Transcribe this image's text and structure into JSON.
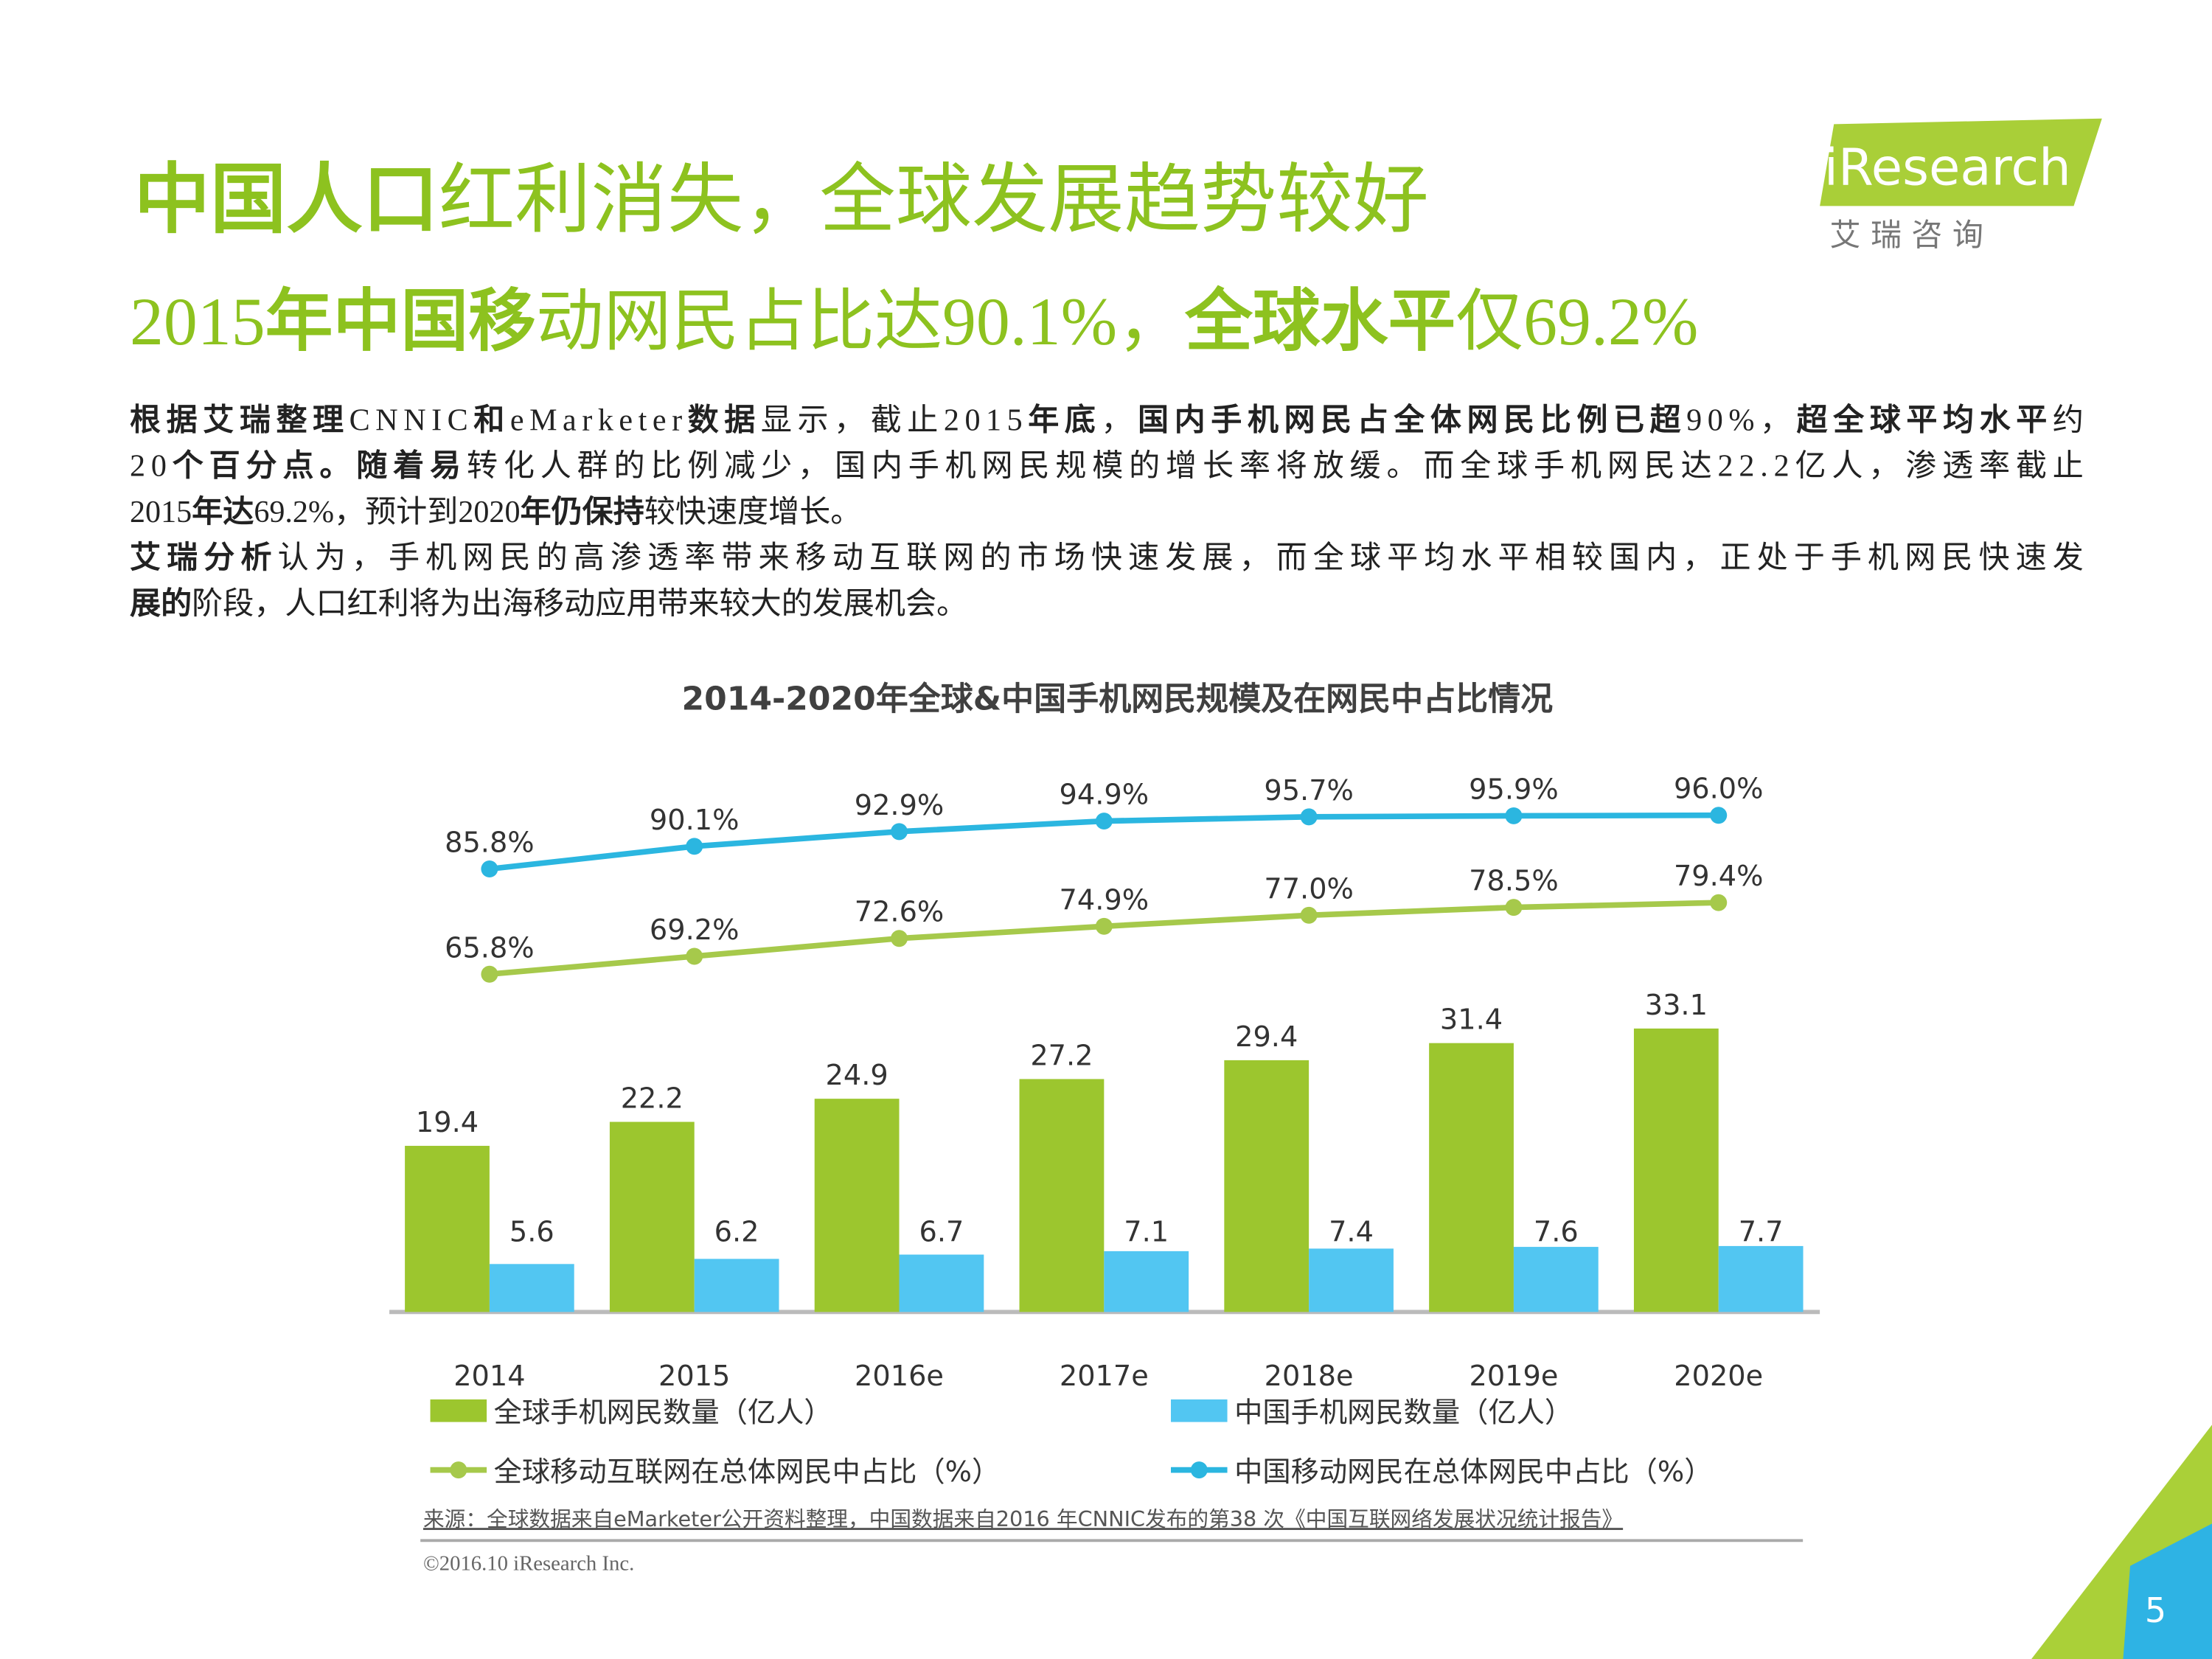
{
  "logo": {
    "brand": "iResearch",
    "sub": "艾 瑞 咨 询"
  },
  "header": {
    "title": [
      {
        "text": "中国人口",
        "bold": true
      },
      {
        "text": "红利消失，全球发展趋势较好",
        "bold": false
      }
    ],
    "subtitle": [
      {
        "text": "2015",
        "bold": false
      },
      {
        "text": "年中国移",
        "bold": true
      },
      {
        "text": "动网民占比达90.1%，",
        "bold": false
      },
      {
        "text": "全球水平",
        "bold": true
      },
      {
        "text": "仅69.2%",
        "bold": false
      }
    ]
  },
  "body": [
    [
      {
        "text": "根据艾瑞整理",
        "bold": true
      },
      {
        "text": "CNNIC",
        "bold": false
      },
      {
        "text": "和",
        "bold": true
      },
      {
        "text": "eMarketer",
        "bold": false
      },
      {
        "text": "数据",
        "bold": true
      },
      {
        "text": "显示，截止2015",
        "bold": false
      },
      {
        "text": "年底",
        "bold": true
      },
      {
        "text": "，",
        "bold": false
      },
      {
        "text": "国内手机网民占全体网民比例已超",
        "bold": true
      },
      {
        "text": "90%，",
        "bold": false
      },
      {
        "text": "超全球平均水平",
        "bold": true
      },
      {
        "text": "约",
        "bold": false
      }
    ],
    [
      {
        "text": "20",
        "bold": false
      },
      {
        "text": "个百分点。随着易",
        "bold": true
      },
      {
        "text": "转化人群的比例减少，国内手机网民规模的增长率将放缓。而全球手机网民达22.2亿人，渗透率截止",
        "bold": false
      }
    ],
    [
      {
        "text": "2015",
        "bold": false
      },
      {
        "text": "年达",
        "bold": true
      },
      {
        "text": "69.2%，预计到2020",
        "bold": false
      },
      {
        "text": "年仍保持",
        "bold": true
      },
      {
        "text": "较快速度增长。",
        "bold": false
      }
    ],
    [
      {
        "text": "艾瑞分析",
        "bold": true
      },
      {
        "text": "认为，手机网民的高渗透率带来移动互联网的市场快速发展，而全球平均水平相较国内，正处于手机网民快速发",
        "bold": false
      }
    ],
    [
      {
        "text": "展的",
        "bold": true
      },
      {
        "text": "阶段，人口红利将为出海移动应用带来较大的发展机会。",
        "bold": false
      }
    ]
  ],
  "chart_data": {
    "type": "bar-line",
    "title": "2014-2020年全球&中国手机网民规模及在网民中占比情况",
    "categories": [
      "2014",
      "2015",
      "2016e",
      "2017e",
      "2018e",
      "2019e",
      "2020e"
    ],
    "series": [
      {
        "name": "全球手机网民数量（亿人）",
        "type": "bar",
        "color": "#9cc62e",
        "values": [
          19.4,
          22.2,
          24.9,
          27.2,
          29.4,
          31.4,
          33.1
        ]
      },
      {
        "name": "中国手机网民数量（亿人）",
        "type": "bar",
        "color": "#52c6f2",
        "values": [
          5.6,
          6.2,
          6.7,
          7.1,
          7.4,
          7.6,
          7.7
        ]
      },
      {
        "name": "全球移动互联网在总体网民中占比（%）",
        "type": "line",
        "color": "#a6c94b",
        "values": [
          65.8,
          69.2,
          72.6,
          74.9,
          77.0,
          78.5,
          79.4
        ],
        "value_labels": [
          "65.8%",
          "69.2%",
          "72.6%",
          "74.9%",
          "77.0%",
          "78.5%",
          "79.4%"
        ]
      },
      {
        "name": "中国移动网民在总体网民中占比（%）",
        "type": "line",
        "color": "#2bb6e0",
        "values": [
          85.8,
          90.1,
          92.9,
          94.9,
          95.7,
          95.9,
          96.0
        ],
        "value_labels": [
          "85.8%",
          "90.1%",
          "92.9%",
          "94.9%",
          "95.7%",
          "95.9%",
          "96.0%"
        ]
      }
    ]
  },
  "source": "来源：全球数据来自eMarketer公开资料整理，中国数据来自2016 年CNNIC发布的第38 次《中国互联网络发展状况统计报告》",
  "copyright": "©2016.10 iResearch Inc.",
  "page_number": "5"
}
